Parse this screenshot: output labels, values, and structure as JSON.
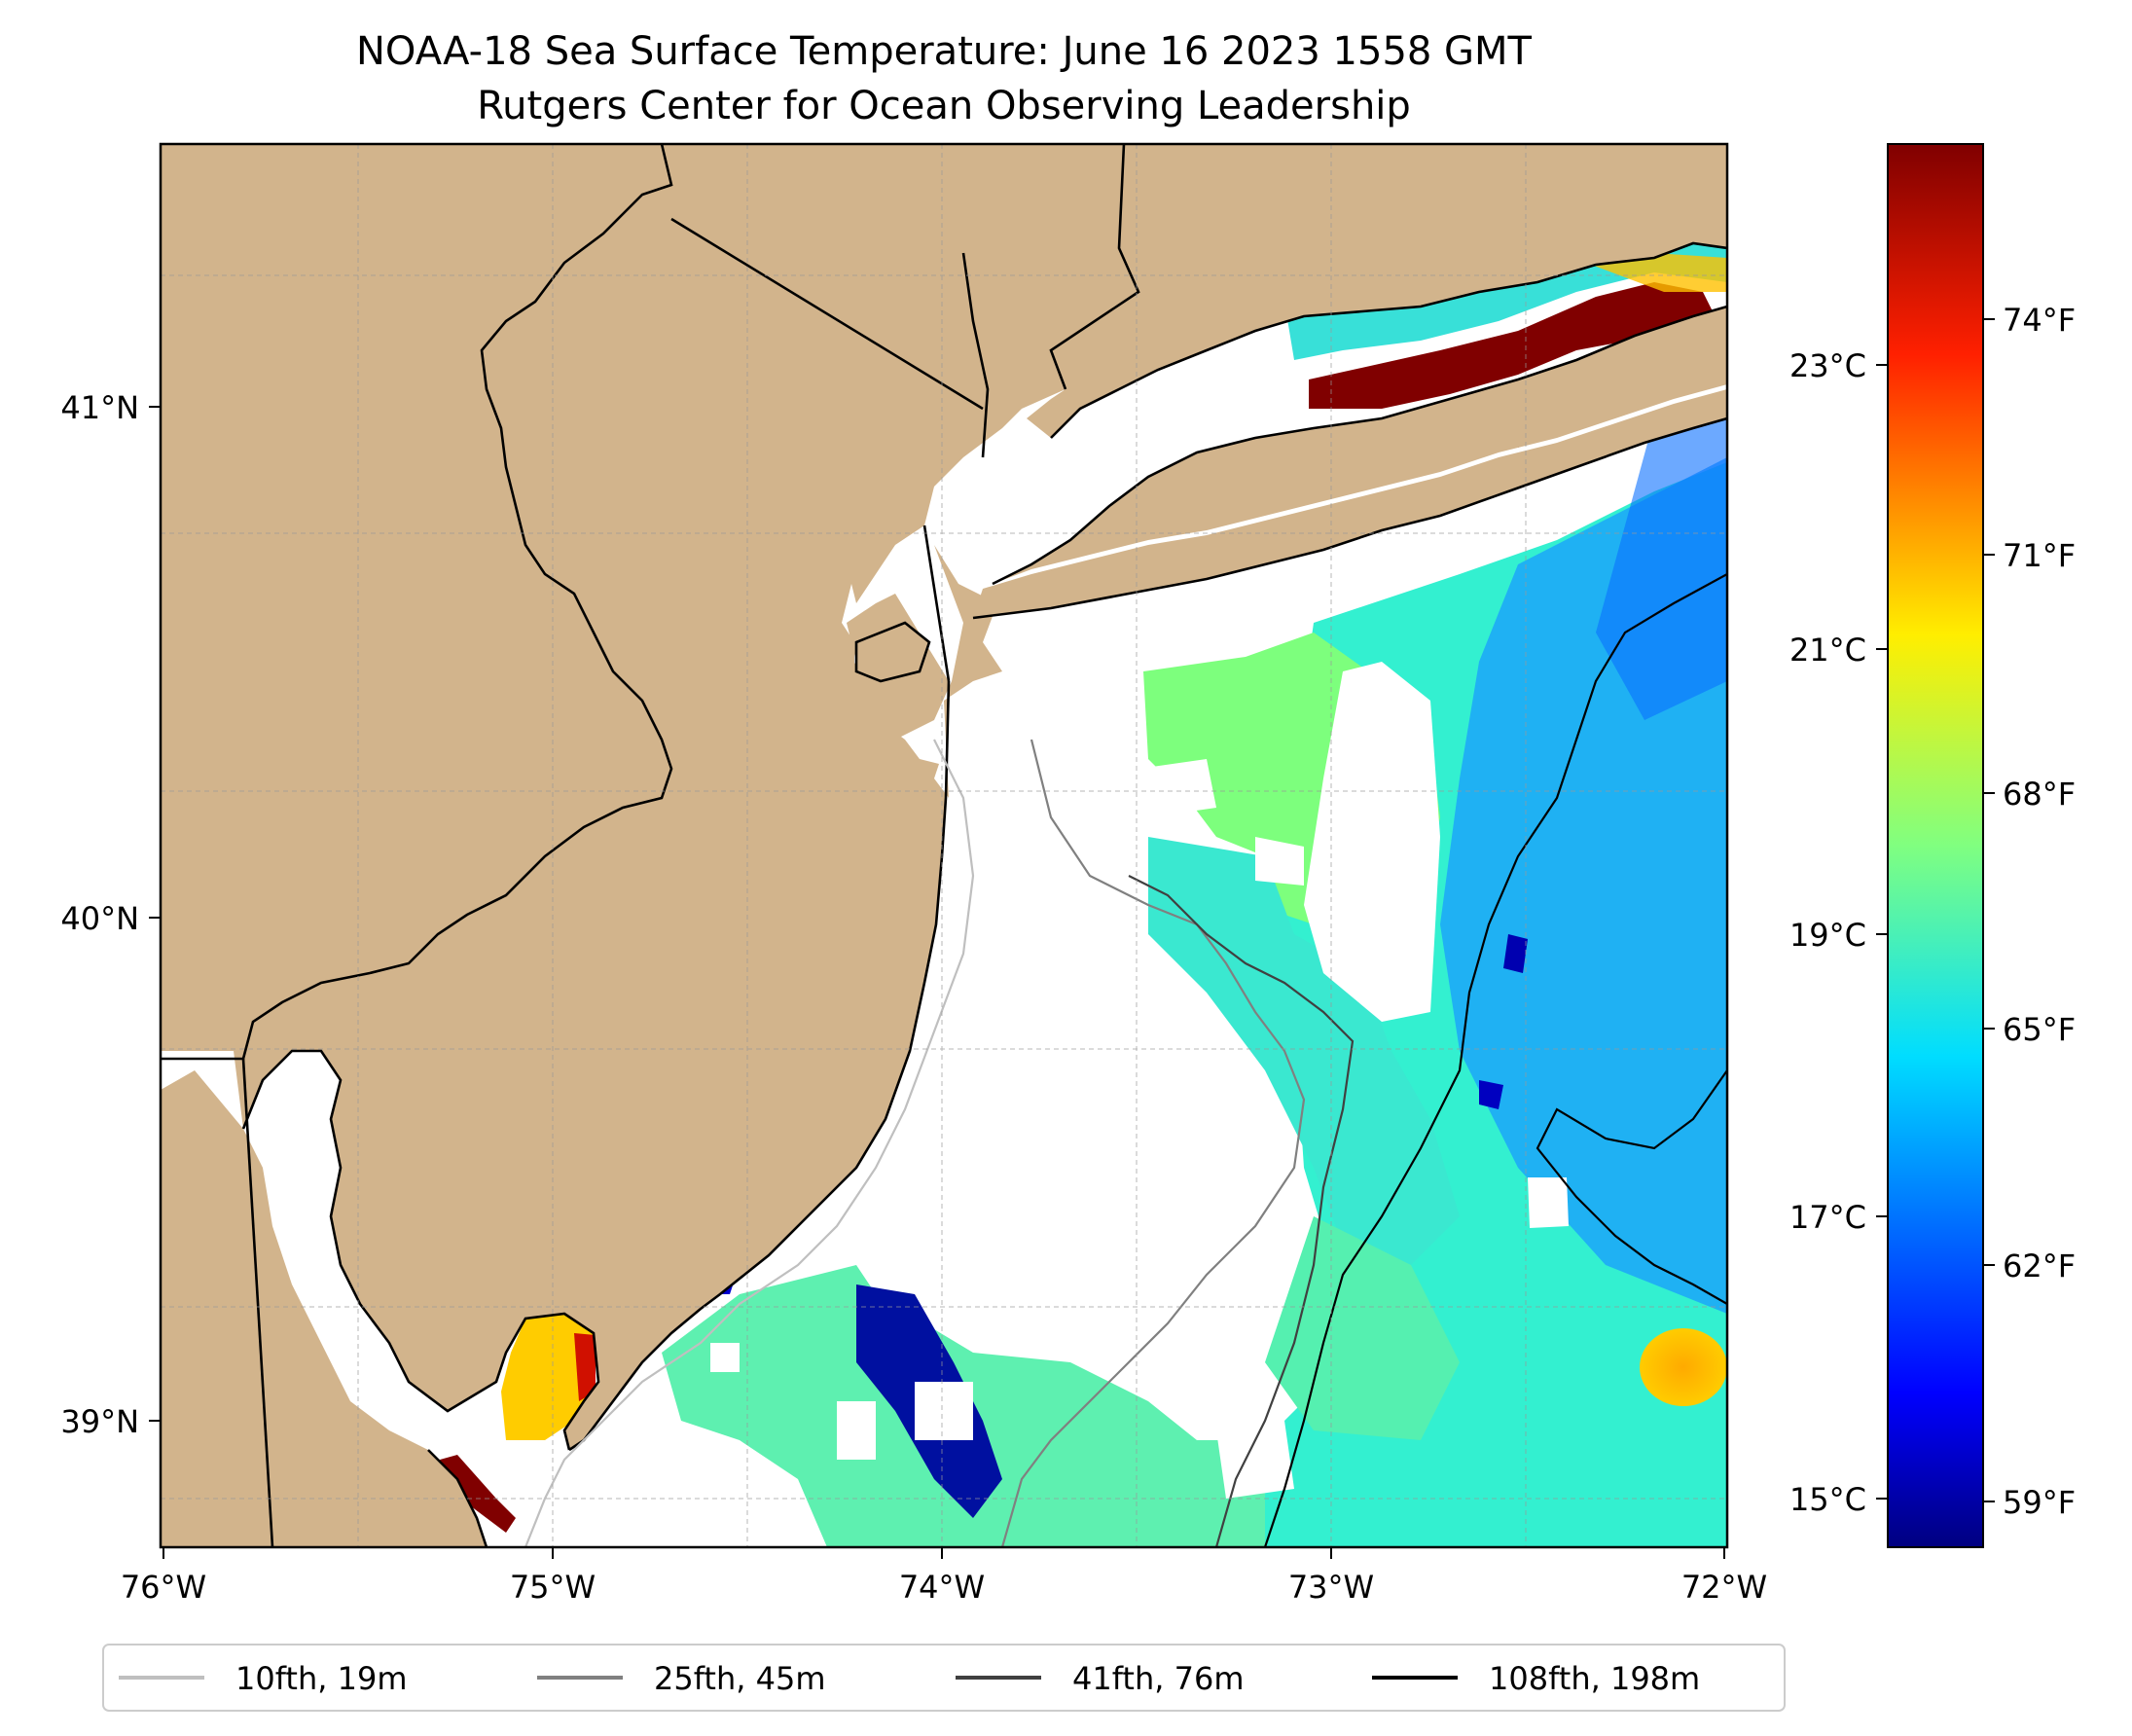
{
  "map": {
    "title_line1": "NOAA-18 Sea Surface Temperature: June 16 2023 1558 GMT",
    "title_line2": "Rutgers Center for Ocean Observing Leadership",
    "lon_ticks": [
      "76°W",
      "75°W",
      "74°W",
      "73°W",
      "72°W"
    ],
    "lat_ticks": [
      "41°N",
      "40°N",
      "39°N"
    ],
    "land_color": "#d2b48c",
    "gridlines": true,
    "colormap": "jet"
  },
  "colorbar": {
    "celsius_ticks": [
      "23°C",
      "21°C",
      "19°C",
      "17°C",
      "15°C"
    ],
    "fahrenheit_ticks": [
      "74°F",
      "71°F",
      "68°F",
      "65°F",
      "62°F",
      "59°F"
    ]
  },
  "legend": {
    "position": "bottom-center",
    "items": [
      {
        "label": "10fth, 19m",
        "color": "#bfbfbf"
      },
      {
        "label": "25fth, 45m",
        "color": "#808080"
      },
      {
        "label": "41fth, 76m",
        "color": "#404040"
      },
      {
        "label": "108fth, 198m",
        "color": "#000000"
      }
    ]
  }
}
